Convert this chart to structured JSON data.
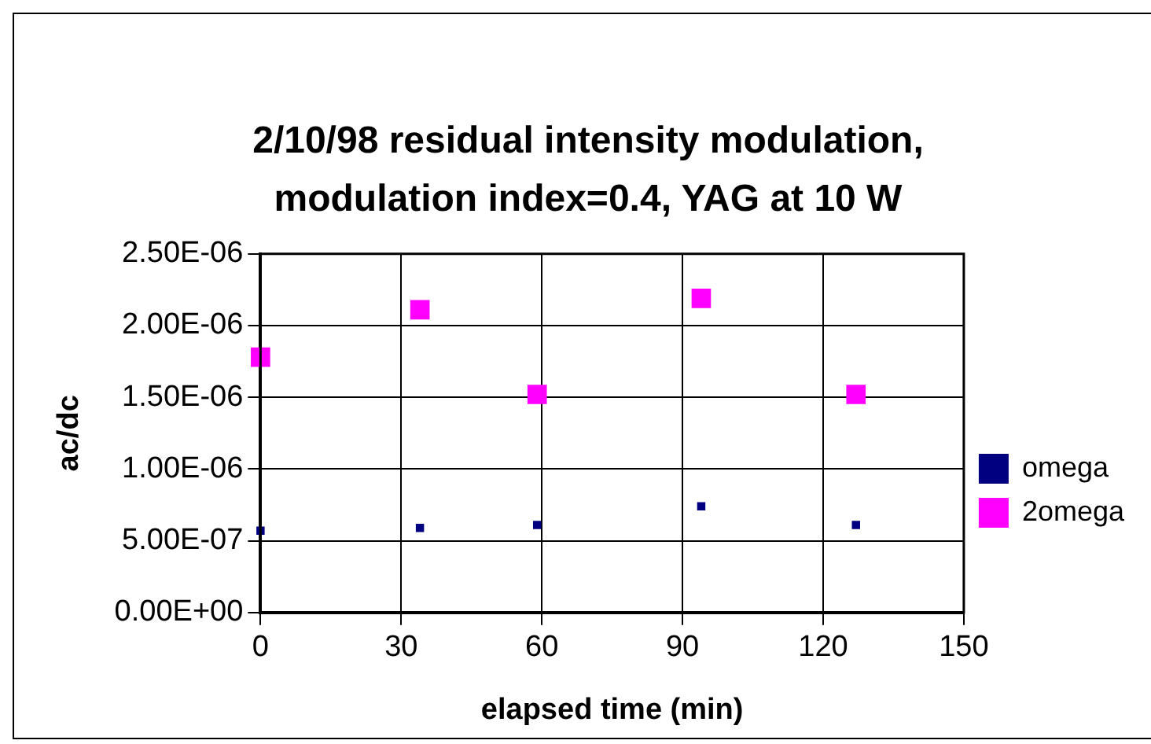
{
  "chart_data": {
    "type": "scatter",
    "title": "2/10/98 residual intensity modulation, modulation index=0.4, YAG at 10 W",
    "xlabel": "elapsed time (min)",
    "ylabel": "ac/dc",
    "x": [
      0,
      34,
      59,
      94,
      127
    ],
    "series": [
      {
        "name": "omega",
        "color": "#000080",
        "values": [
          5.7e-07,
          5.9e-07,
          6.1e-07,
          7.4e-07,
          6.1e-07
        ]
      },
      {
        "name": "2omega",
        "color": "#ff00ff",
        "marker": "square",
        "values": [
          1.78e-06,
          2.11e-06,
          1.52e-06,
          2.19e-06,
          1.52e-06
        ]
      }
    ],
    "xlim": [
      0,
      150
    ],
    "xticks": [
      0,
      30,
      60,
      90,
      120,
      150
    ],
    "ylim": [
      0,
      2.5e-06
    ],
    "yticks": [
      {
        "value": 0,
        "label": "0.00E+00"
      },
      {
        "value": 5e-07,
        "label": "5.00E-07"
      },
      {
        "value": 1e-06,
        "label": "1.00E-06"
      },
      {
        "value": 1.5e-06,
        "label": "1.50E-06"
      },
      {
        "value": 2e-06,
        "label": "2.00E-06"
      },
      {
        "value": 2.5e-06,
        "label": "2.50E-06"
      }
    ],
    "grid": true,
    "legend": "right"
  }
}
